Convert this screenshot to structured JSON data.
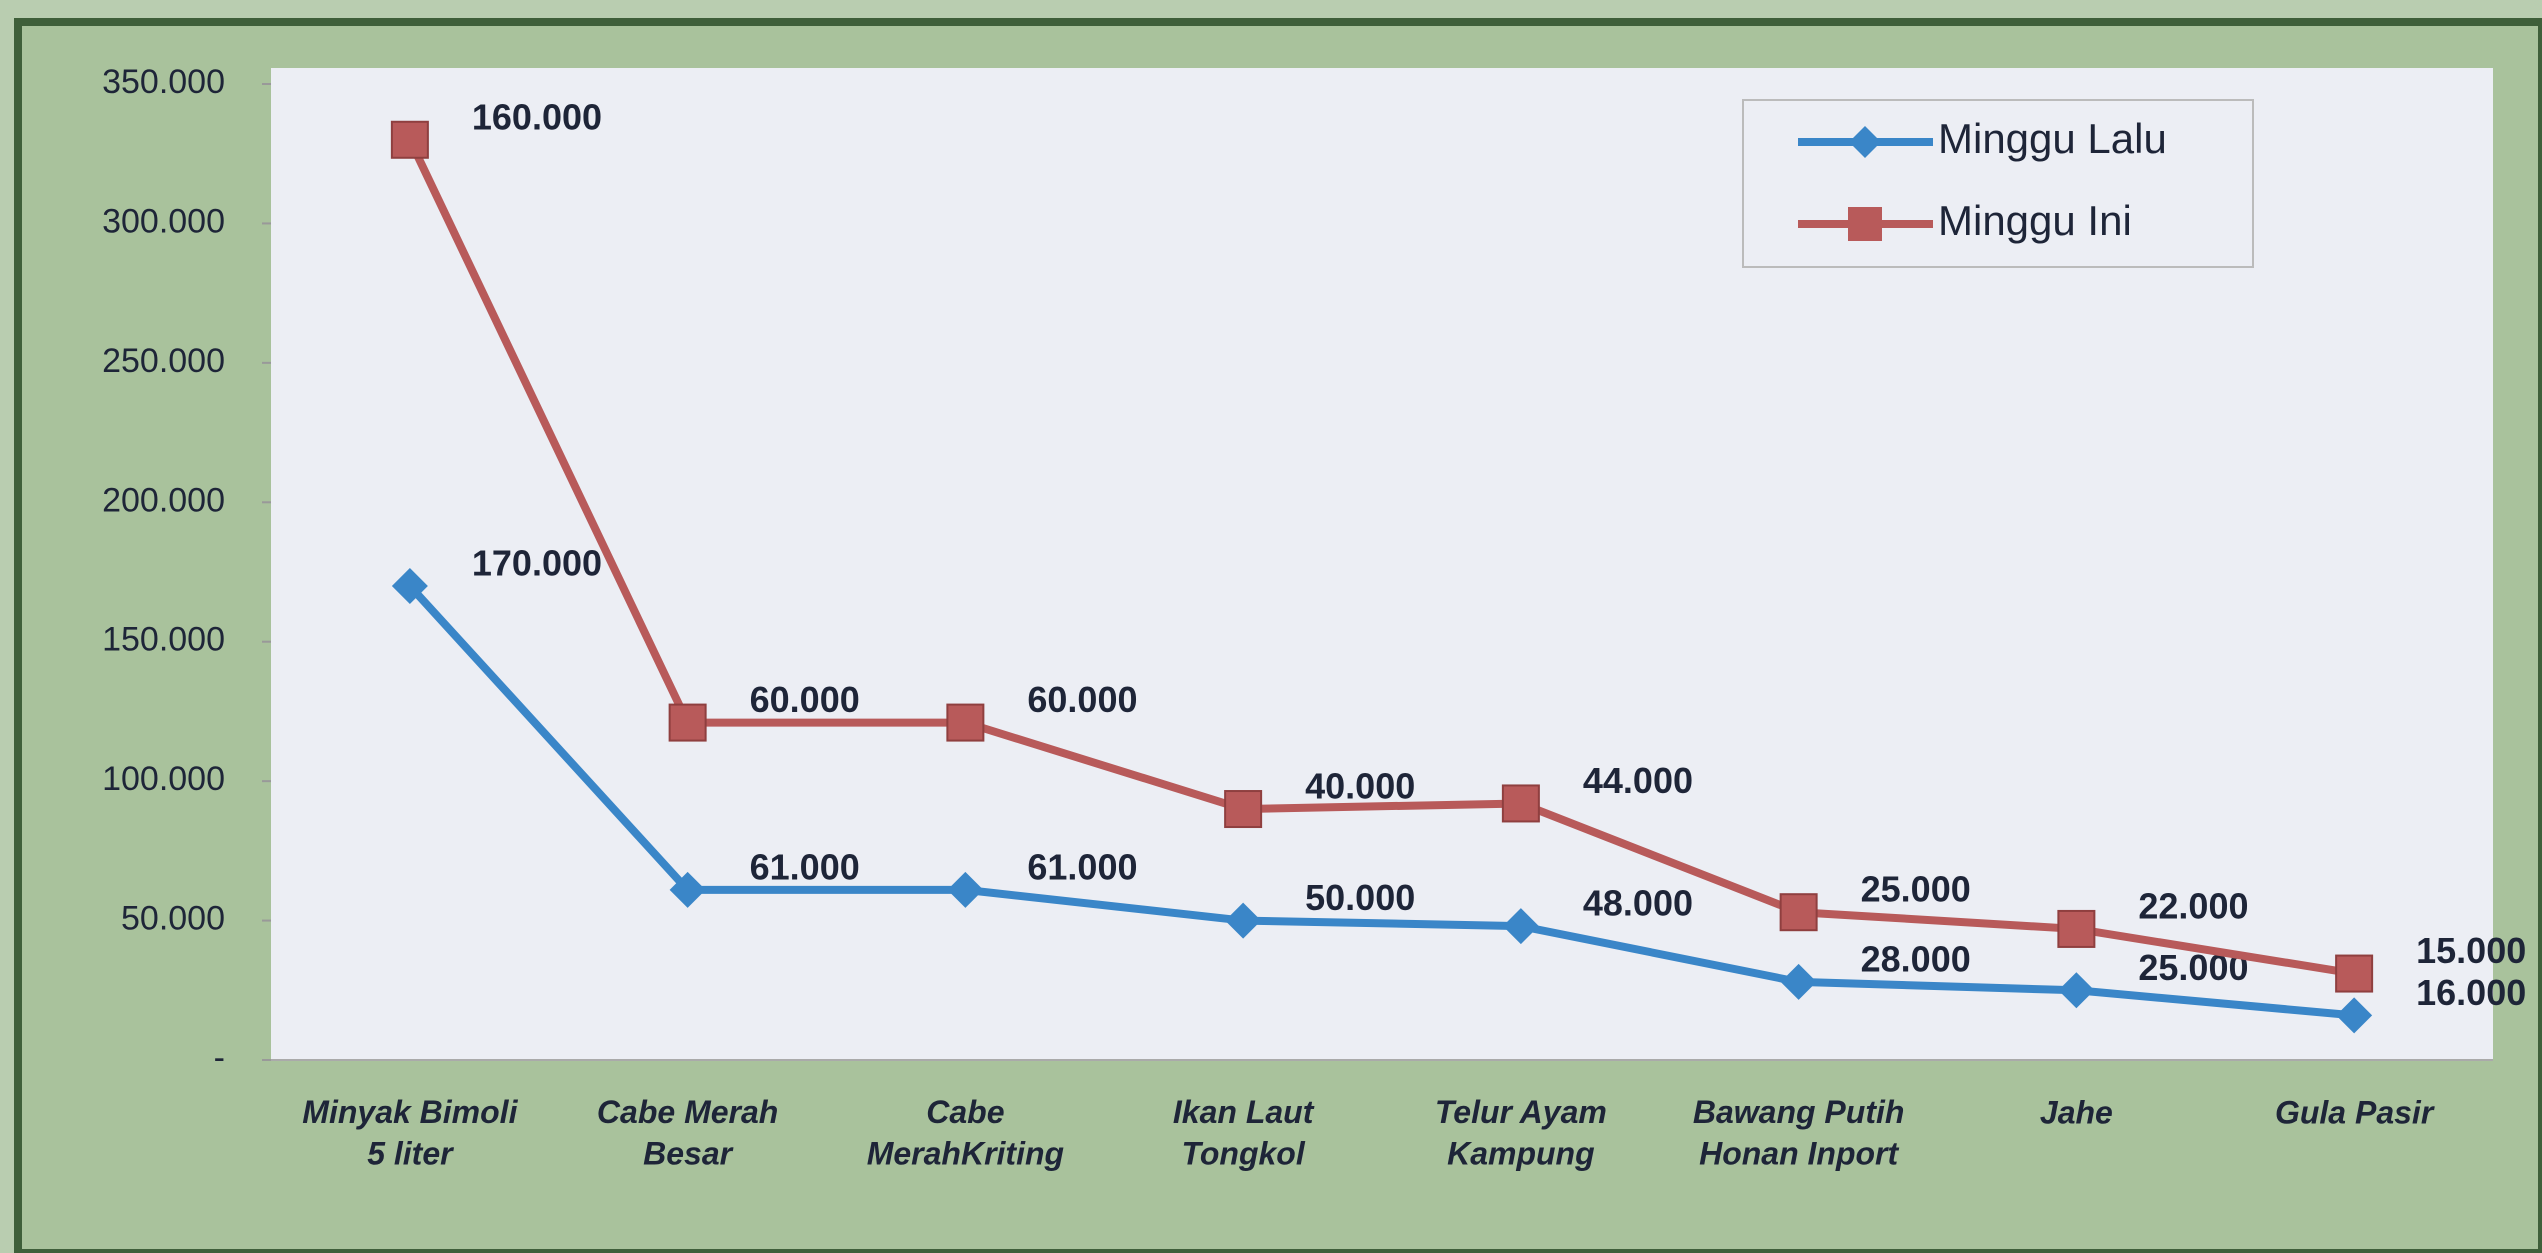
{
  "chart_data": {
    "type": "line",
    "stacked": true,
    "categories": [
      "Minyak Bimoli\n5 liter",
      "Cabe Merah\nBesar",
      "Cabe\nMerahKriting",
      "Ikan Laut\nTongkol",
      "Telur Ayam\nKampung",
      "Bawang Putih\nHonan Inport",
      "Jahe",
      "Gula Pasir"
    ],
    "series": [
      {
        "name": "Minggu Lalu",
        "color": "#3a86c8",
        "marker": "diamond",
        "values": [
          170000,
          61000,
          61000,
          50000,
          48000,
          28000,
          25000,
          16000
        ],
        "value_labels": [
          "170.000",
          "61.000",
          "61.000",
          "50.000",
          "48.000",
          "28.000",
          "25.000",
          "16.000"
        ]
      },
      {
        "name": "Minggu Ini",
        "color": "#b85a5a",
        "marker": "square",
        "values": [
          160000,
          60000,
          60000,
          40000,
          44000,
          25000,
          22000,
          15000
        ],
        "value_labels": [
          "160.000",
          "60.000",
          "60.000",
          "40.000",
          "44.000",
          "25.000",
          "22.000",
          "15.000"
        ]
      }
    ],
    "ylim": [
      0,
      350000
    ],
    "yticks": [
      {
        "value": 0,
        "label": "-"
      },
      {
        "value": 50000,
        "label": "50.000"
      },
      {
        "value": 100000,
        "label": "100.000"
      },
      {
        "value": 150000,
        "label": "150.000"
      },
      {
        "value": 200000,
        "label": "200.000"
      },
      {
        "value": 250000,
        "label": "250.000"
      },
      {
        "value": 300000,
        "label": "300.000"
      },
      {
        "value": 350000,
        "label": "350.000"
      }
    ],
    "legend": "top-right"
  }
}
